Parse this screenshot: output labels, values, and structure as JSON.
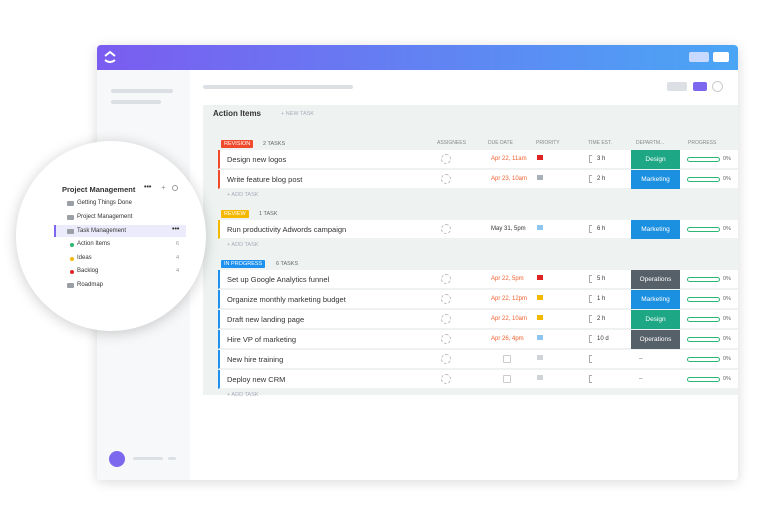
{
  "sidebar": {
    "title": "Project Management",
    "items": [
      "Getting Things Done",
      "Project Management",
      "Task Management"
    ],
    "subitems": [
      {
        "label": "Action Items",
        "count": "6",
        "color": "#2bb673"
      },
      {
        "label": "Ideas",
        "count": "4",
        "color": "#f5b800"
      },
      {
        "label": "Backlog",
        "count": "4",
        "color": "#e02424"
      }
    ],
    "footer_item": "Roadmap"
  },
  "list": {
    "title": "Action Items",
    "new_task": "+ NEW TASK",
    "add_task": "+ ADD TASK",
    "columns": [
      "ASSIGNEES",
      "DUE DATE",
      "PRIORITY",
      "TIME EST.",
      "DEPARTM...",
      "PROGRESS"
    ],
    "groups": [
      {
        "label": "REVISION",
        "count": "2 TASKS",
        "color": "#ef4a2b",
        "tasks": [
          {
            "name": "Design new logos",
            "due": "Apr 22, 11am",
            "due_color": "#f0602f",
            "flag": "#e02424",
            "time": "3 h",
            "dept": "Design",
            "dept_color": "#1ea784",
            "progress": "0%"
          },
          {
            "name": "Write feature blog post",
            "due": "Apr 23, 10am",
            "due_color": "#f0602f",
            "flag": "#aab0b8",
            "time": "2 h",
            "dept": "Marketing",
            "dept_color": "#1b8fe0",
            "progress": "0%"
          }
        ]
      },
      {
        "label": "REVIEW",
        "count": "1 TASK",
        "color": "#f5b800",
        "tasks": [
          {
            "name": "Run productivity Adwords campaign",
            "due": "May 31, 5pm",
            "due_color": "#333333",
            "flag": "#8fc6f0",
            "time": "6 h",
            "dept": "Marketing",
            "dept_color": "#1b8fe0",
            "progress": "0%"
          }
        ]
      },
      {
        "label": "IN PROGRESS",
        "count": "6 TASKS",
        "color": "#1e90ef",
        "tasks": [
          {
            "name": "Set up Google Analytics funnel",
            "due": "Apr 22, 5pm",
            "due_color": "#f0602f",
            "flag": "#e02424",
            "time": "5 h",
            "dept": "Operations",
            "dept_color": "#566069",
            "progress": "0%"
          },
          {
            "name": "Organize monthly marketing budget",
            "due": "Apr 22, 12pm",
            "due_color": "#f0602f",
            "flag": "#f5b800",
            "time": "1 h",
            "dept": "Marketing",
            "dept_color": "#1b8fe0",
            "progress": "0%"
          },
          {
            "name": "Draft new landing page",
            "due": "Apr 22, 10am",
            "due_color": "#f0602f",
            "flag": "#f5b800",
            "time": "2 h",
            "dept": "Design",
            "dept_color": "#1ea784",
            "progress": "0%"
          },
          {
            "name": "Hire VP of marketing",
            "due": "Apr 26, 4pm",
            "due_color": "#f0602f",
            "flag": "#8fc6f0",
            "time": "10 d",
            "dept": "Operations",
            "dept_color": "#566069",
            "progress": "0%"
          },
          {
            "name": "New hire training",
            "due": null,
            "due_color": null,
            "flag": "#d0d4d9",
            "time": null,
            "dept": "–",
            "dept_color": null,
            "progress": "0%"
          },
          {
            "name": "Deploy new CRM",
            "due": null,
            "due_color": null,
            "flag": "#d0d4d9",
            "time": null,
            "dept": "–",
            "dept_color": null,
            "progress": "0%"
          }
        ]
      }
    ]
  }
}
